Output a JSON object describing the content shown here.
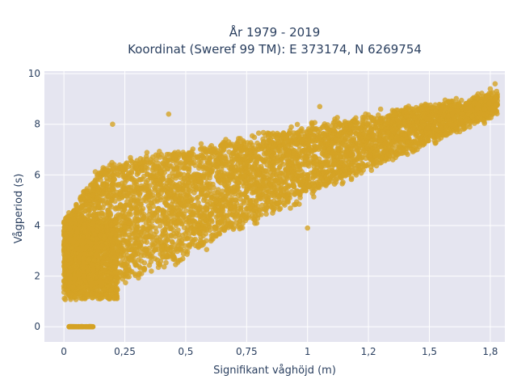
{
  "chart_data": {
    "type": "scatter",
    "title_line1": "År 1979 - 2019",
    "title_line2": "Koordinat (Sweref 99 TM): E 373174, N 6269754",
    "xlabel": "Signifikant våghöjd (m)",
    "ylabel": "Vågperiod (s)",
    "xlim": [
      -0.08,
      1.81
    ],
    "ylim": [
      -0.6,
      10.1
    ],
    "x_ticks": [
      0,
      0.25,
      0.5,
      0.75,
      1,
      1.25,
      1.5,
      1.75
    ],
    "x_tick_labels": [
      "0",
      "0,25",
      "0,5",
      "0,75",
      "1",
      "1,2",
      "1,5",
      "1,8"
    ],
    "y_ticks": [
      0,
      2,
      4,
      6,
      8,
      10
    ],
    "y_tick_labels": [
      "0",
      "2",
      "4",
      "6",
      "8",
      "10"
    ],
    "grid": true,
    "marker_color": "#d4a224",
    "plot_background": "#e5e5f0",
    "series": [
      {
        "description_points": [
          [
            0.0,
            1.6
          ],
          [
            0.0,
            4.1
          ],
          [
            0.02,
            4.2
          ],
          [
            0.03,
            0.0
          ],
          [
            0.05,
            0.0
          ],
          [
            0.07,
            0.0
          ],
          [
            0.09,
            0.0
          ],
          [
            0.11,
            0.0
          ],
          [
            0.05,
            1.2
          ],
          [
            0.08,
            2.5
          ],
          [
            0.1,
            3.8
          ],
          [
            0.12,
            5.2
          ],
          [
            0.15,
            1.4
          ],
          [
            0.18,
            4.6
          ],
          [
            0.2,
            6.2
          ],
          [
            0.2,
            8.0
          ],
          [
            0.25,
            2.0
          ],
          [
            0.3,
            5.5
          ],
          [
            0.35,
            3.1
          ],
          [
            0.4,
            6.8
          ],
          [
            0.43,
            8.4
          ],
          [
            0.45,
            4.2
          ],
          [
            0.5,
            3.0
          ],
          [
            0.55,
            6.0
          ],
          [
            0.6,
            4.4
          ],
          [
            0.65,
            7.2
          ],
          [
            0.7,
            4.8
          ],
          [
            0.75,
            6.5
          ],
          [
            0.8,
            5.6
          ],
          [
            0.85,
            7.6
          ],
          [
            0.9,
            5.2
          ],
          [
            0.95,
            6.8
          ],
          [
            1.0,
            3.9
          ],
          [
            1.0,
            6.0
          ],
          [
            1.05,
            8.7
          ],
          [
            1.1,
            6.3
          ],
          [
            1.15,
            7.8
          ],
          [
            1.2,
            6.0
          ],
          [
            1.25,
            7.5
          ],
          [
            1.3,
            8.6
          ],
          [
            1.35,
            6.6
          ],
          [
            1.4,
            7.6
          ],
          [
            1.45,
            7.0
          ],
          [
            1.5,
            8.2
          ],
          [
            1.55,
            7.6
          ],
          [
            1.6,
            8.5
          ],
          [
            1.65,
            8.8
          ],
          [
            1.7,
            9.2
          ],
          [
            1.75,
            9.4
          ],
          [
            1.77,
            9.6
          ]
        ]
      }
    ]
  }
}
